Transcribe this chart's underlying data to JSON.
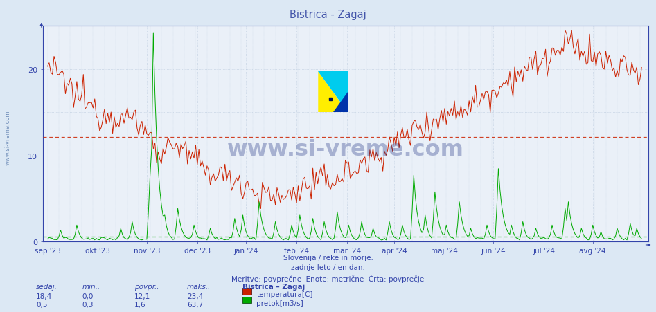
{
  "title": "Bistrica - Zagaj",
  "title_color": "#4455aa",
  "bg_color": "#dce8f4",
  "plot_bg_color": "#eaf0f8",
  "grid_color": "#b8c8dc",
  "axis_color": "#3344aa",
  "temp_color": "#cc2200",
  "flow_color": "#00aa00",
  "temp_avg_line": 12.1,
  "flow_avg_line": 1.6,
  "flow_max": 65.0,
  "temp_max": 25.0,
  "temp_avg_color": "#cc2200",
  "flow_avg_color": "#00aa00",
  "footer_lines": [
    "Slovenija / reke in morje.",
    "zadnje leto / en dan.",
    "Meritve: povprečne  Enote: metrične  Črta: povprečje"
  ],
  "legend_title": "Bistrica – Zagaj",
  "legend_items": [
    "temperatura[C]",
    "pretok[m3/s]"
  ],
  "stats_headers": [
    "sedaj:",
    "min.:",
    "povpr.:",
    "maks.:"
  ],
  "stats_temp": [
    "18,4",
    "0,0",
    "12,1",
    "23,4"
  ],
  "stats_flow": [
    "0,5",
    "0,3",
    "1,6",
    "63,7"
  ],
  "watermark": "www.si-vreme.com",
  "watermark_color": "#1a2e80",
  "sidebar_text": "www.si-vreme.com",
  "sidebar_color": "#5577aa",
  "logo_yellow": "#ffee00",
  "logo_cyan": "#00ccee",
  "logo_blue": "#0033aa",
  "month_ticks": [
    0,
    31,
    61,
    92,
    122,
    153,
    184,
    213,
    244,
    274,
    305,
    335
  ],
  "month_labels": [
    "sep '23",
    "okt '23",
    "nov '23",
    "dec '23",
    "jan '24",
    "feb '24",
    "mar '24",
    "apr '24",
    "maj '24",
    "jun '24",
    "jul '24",
    "avg '24"
  ],
  "n_days": 366
}
